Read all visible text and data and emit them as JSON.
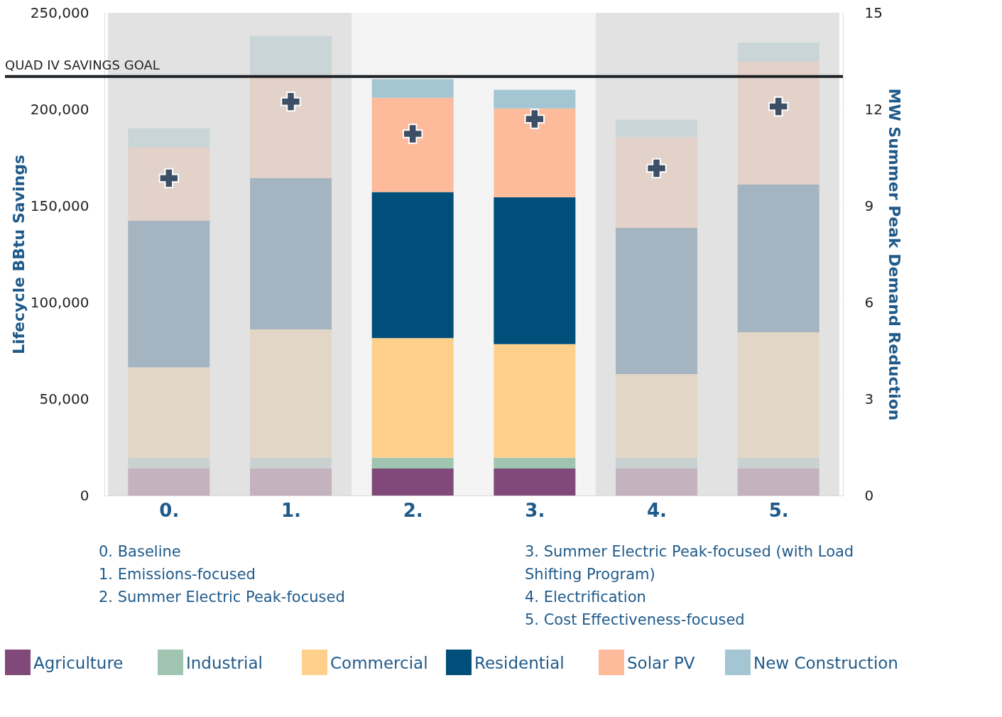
{
  "chart_data": {
    "type": "bar",
    "stacked": true,
    "categories": [
      "0.",
      "1.",
      "2.",
      "3.",
      "4.",
      "5."
    ],
    "ylabel": "Lifecycle BBtu Savings",
    "y2label": "MW Summer Peak Demand Reduction",
    "ylim": [
      0,
      250000
    ],
    "yticks": [
      {
        "value": 0,
        "label": "0"
      },
      {
        "value": 50000,
        "label": "50,000"
      },
      {
        "value": 100000,
        "label": "100,000"
      },
      {
        "value": 150000,
        "label": "150,000"
      },
      {
        "value": 200000,
        "label": "200,000"
      },
      {
        "value": 250000,
        "label": "250,000"
      }
    ],
    "y2lim": [
      0,
      15
    ],
    "y2ticks": [
      0,
      3,
      6,
      9,
      12,
      15
    ],
    "series": [
      {
        "name": "Agriculture",
        "color": "#80497a",
        "colors": [
          "#c4b2bf",
          "#c4b2bf",
          "#80497a",
          "#80497a",
          "#c4b2bf",
          "#c4b2bf"
        ],
        "values": [
          14000,
          14000,
          14000,
          14000,
          14000,
          14000
        ]
      },
      {
        "name": "Industrial",
        "color": "#9fc5b0",
        "colors": [
          "#c9d2d1",
          "#c9d2d1",
          "#9fc5b0",
          "#9fc5b0",
          "#c9d2d1",
          "#c9d2d1"
        ],
        "values": [
          5600,
          5600,
          5600,
          5600,
          5600,
          5600
        ]
      },
      {
        "name": "Commercial",
        "color": "#fed08c",
        "colors": [
          "#e2d7c6",
          "#e2d7c6",
          "#fed08c",
          "#fed08c",
          "#e2d7c6",
          "#e2d7c6"
        ],
        "values": [
          46800,
          66400,
          61900,
          58800,
          43300,
          65000
        ]
      },
      {
        "name": "Residential",
        "color": "#004e7a",
        "colors": [
          "#a4b5c1",
          "#a4b5c1",
          "#004e7a",
          "#004e7a",
          "#a4b5c1",
          "#a4b5c1"
        ],
        "values": [
          76000,
          78400,
          75700,
          76000,
          75700,
          76400
        ]
      },
      {
        "name": "Solar PV",
        "color": "#fdbb9b",
        "colors": [
          "#e3d2ca",
          "#e3d2ca",
          "#fdbb9b",
          "#fdbb9b",
          "#e3d2ca",
          "#e3d2ca"
        ],
        "values": [
          37800,
          53300,
          48800,
          46100,
          47100,
          63600
        ]
      },
      {
        "name": "New Construction",
        "color": "#a3c6d2",
        "colors": [
          "#cad5d8",
          "#cad5d8",
          "#a3c6d2",
          "#a3c6d2",
          "#cad5d8",
          "#cad5d8"
        ],
        "values": [
          10000,
          20300,
          9600,
          9600,
          9000,
          10000
        ]
      },
      {
        "type": "scatter",
        "axis": "y2",
        "marker": "cross",
        "color": "#3d4f66",
        "values": [
          9.86,
          12.24,
          11.24,
          11.7,
          10.17,
          12.09
        ]
      }
    ],
    "bands": [
      {
        "axis": "x",
        "from": "0.",
        "to": "1.",
        "color": "#e2e2e2"
      },
      {
        "axis": "x",
        "from": "2.",
        "to": "3.",
        "color": "#f4f4f4"
      },
      {
        "axis": "x",
        "from": "4.",
        "to": "5.",
        "color": "#e2e2e2"
      }
    ],
    "ref_lines": [
      {
        "axis": "y",
        "value": 217000,
        "label": "QUAD IV SAVINGS GOAL",
        "color": "#1e2226"
      }
    ],
    "annotations": [
      "0. Baseline",
      "1. Emissions-focused",
      "2. Summer Electric Peak-focused",
      "3. Summer Electric Peak-focused (with Load Shifting Program)",
      "4. Electrification",
      "5. Cost Effectiveness-focused"
    ],
    "grid": "y",
    "legend": "bottom"
  }
}
